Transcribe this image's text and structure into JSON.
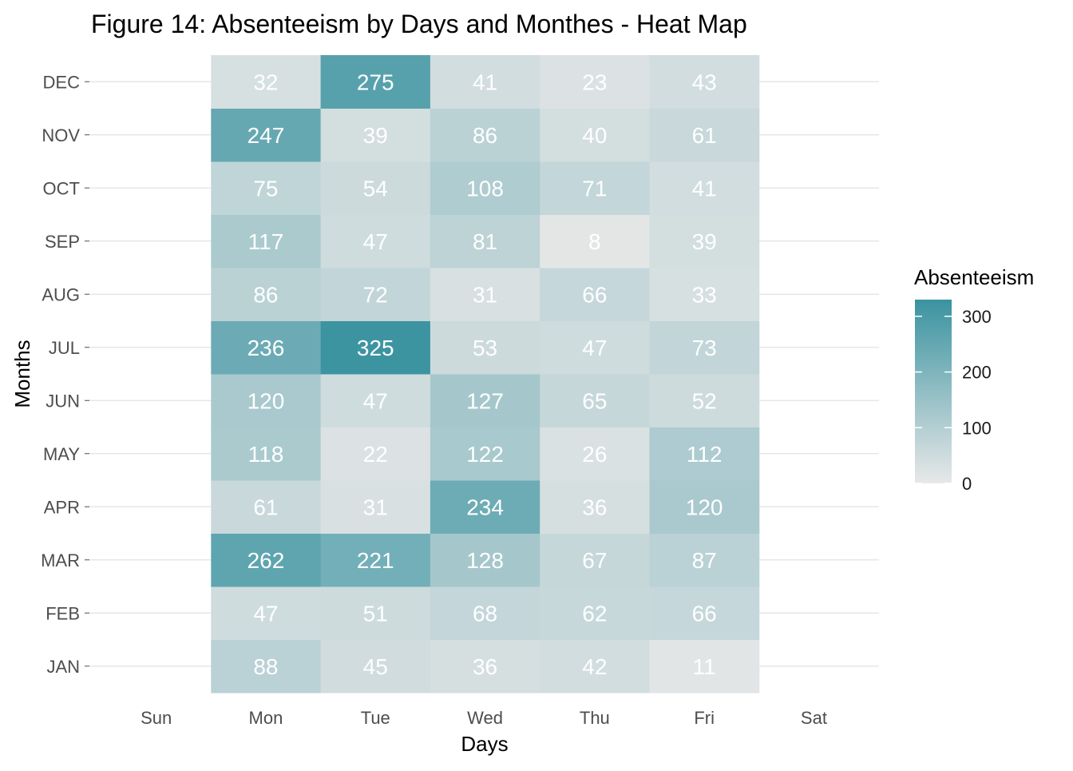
{
  "chart_data": {
    "type": "heatmap",
    "title": "Figure 14: Absenteeism by Days and Monthes - Heat Map",
    "xlabel": "Days",
    "ylabel": "Months",
    "x_categories": [
      "Sun",
      "Mon",
      "Tue",
      "Wed",
      "Thu",
      "Fri",
      "Sat"
    ],
    "y_categories": [
      "JAN",
      "FEB",
      "MAR",
      "APR",
      "MAY",
      "JUN",
      "JUL",
      "AUG",
      "SEP",
      "OCT",
      "NOV",
      "DEC"
    ],
    "cells": [
      {
        "day": "Mon",
        "month": "JAN",
        "value": 88
      },
      {
        "day": "Tue",
        "month": "JAN",
        "value": 45
      },
      {
        "day": "Wed",
        "month": "JAN",
        "value": 36
      },
      {
        "day": "Thu",
        "month": "JAN",
        "value": 42
      },
      {
        "day": "Fri",
        "month": "JAN",
        "value": 11
      },
      {
        "day": "Mon",
        "month": "FEB",
        "value": 47
      },
      {
        "day": "Tue",
        "month": "FEB",
        "value": 51
      },
      {
        "day": "Wed",
        "month": "FEB",
        "value": 68
      },
      {
        "day": "Thu",
        "month": "FEB",
        "value": 62
      },
      {
        "day": "Fri",
        "month": "FEB",
        "value": 66
      },
      {
        "day": "Mon",
        "month": "MAR",
        "value": 262
      },
      {
        "day": "Tue",
        "month": "MAR",
        "value": 221
      },
      {
        "day": "Wed",
        "month": "MAR",
        "value": 128
      },
      {
        "day": "Thu",
        "month": "MAR",
        "value": 67
      },
      {
        "day": "Fri",
        "month": "MAR",
        "value": 87
      },
      {
        "day": "Mon",
        "month": "APR",
        "value": 61
      },
      {
        "day": "Tue",
        "month": "APR",
        "value": 31
      },
      {
        "day": "Wed",
        "month": "APR",
        "value": 234
      },
      {
        "day": "Thu",
        "month": "APR",
        "value": 36
      },
      {
        "day": "Fri",
        "month": "APR",
        "value": 120
      },
      {
        "day": "Mon",
        "month": "MAY",
        "value": 118
      },
      {
        "day": "Tue",
        "month": "MAY",
        "value": 22
      },
      {
        "day": "Wed",
        "month": "MAY",
        "value": 122
      },
      {
        "day": "Thu",
        "month": "MAY",
        "value": 26
      },
      {
        "day": "Fri",
        "month": "MAY",
        "value": 112
      },
      {
        "day": "Mon",
        "month": "JUN",
        "value": 120
      },
      {
        "day": "Tue",
        "month": "JUN",
        "value": 47
      },
      {
        "day": "Wed",
        "month": "JUN",
        "value": 127
      },
      {
        "day": "Thu",
        "month": "JUN",
        "value": 65
      },
      {
        "day": "Fri",
        "month": "JUN",
        "value": 52
      },
      {
        "day": "Mon",
        "month": "JUL",
        "value": 236
      },
      {
        "day": "Tue",
        "month": "JUL",
        "value": 325
      },
      {
        "day": "Wed",
        "month": "JUL",
        "value": 53
      },
      {
        "day": "Thu",
        "month": "JUL",
        "value": 47
      },
      {
        "day": "Fri",
        "month": "JUL",
        "value": 73
      },
      {
        "day": "Mon",
        "month": "AUG",
        "value": 86
      },
      {
        "day": "Tue",
        "month": "AUG",
        "value": 72
      },
      {
        "day": "Wed",
        "month": "AUG",
        "value": 31
      },
      {
        "day": "Thu",
        "month": "AUG",
        "value": 66
      },
      {
        "day": "Fri",
        "month": "AUG",
        "value": 33
      },
      {
        "day": "Mon",
        "month": "SEP",
        "value": 117
      },
      {
        "day": "Tue",
        "month": "SEP",
        "value": 47
      },
      {
        "day": "Wed",
        "month": "SEP",
        "value": 81
      },
      {
        "day": "Thu",
        "month": "SEP",
        "value": 8
      },
      {
        "day": "Fri",
        "month": "SEP",
        "value": 39
      },
      {
        "day": "Mon",
        "month": "OCT",
        "value": 75
      },
      {
        "day": "Tue",
        "month": "OCT",
        "value": 54
      },
      {
        "day": "Wed",
        "month": "OCT",
        "value": 108
      },
      {
        "day": "Thu",
        "month": "OCT",
        "value": 71
      },
      {
        "day": "Fri",
        "month": "OCT",
        "value": 41
      },
      {
        "day": "Mon",
        "month": "NOV",
        "value": 247
      },
      {
        "day": "Tue",
        "month": "NOV",
        "value": 39
      },
      {
        "day": "Wed",
        "month": "NOV",
        "value": 86
      },
      {
        "day": "Thu",
        "month": "NOV",
        "value": 40
      },
      {
        "day": "Fri",
        "month": "NOV",
        "value": 61
      },
      {
        "day": "Mon",
        "month": "DEC",
        "value": 32
      },
      {
        "day": "Tue",
        "month": "DEC",
        "value": 275
      },
      {
        "day": "Wed",
        "month": "DEC",
        "value": 41
      },
      {
        "day": "Thu",
        "month": "DEC",
        "value": 23
      },
      {
        "day": "Fri",
        "month": "DEC",
        "value": 43
      }
    ],
    "legend": {
      "title": "Absenteeism",
      "placement": "right",
      "range": [
        0,
        330
      ],
      "ticks": [
        0,
        100,
        200,
        300
      ],
      "low_color": "#e8e8e8",
      "high_color": "#3a93a0"
    },
    "grid": true
  }
}
